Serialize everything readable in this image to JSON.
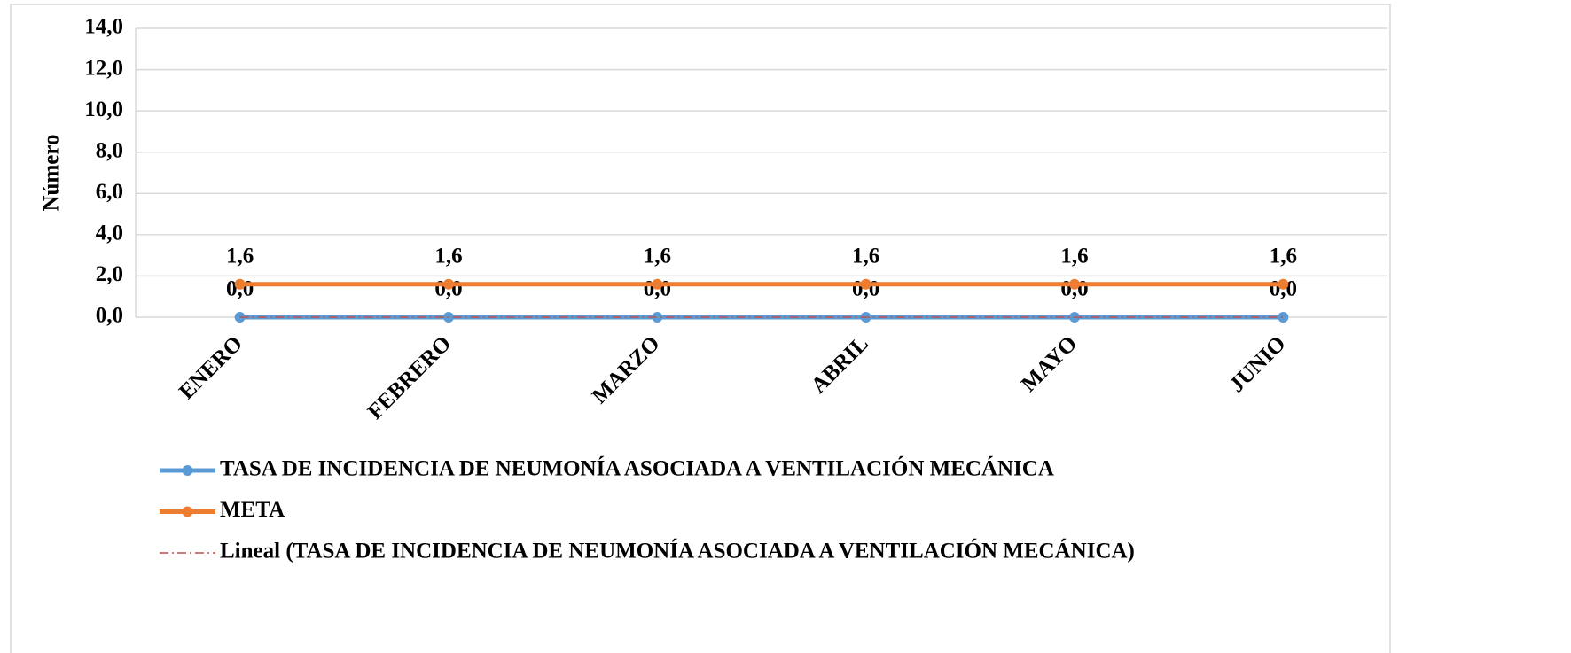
{
  "chart_data": {
    "type": "line",
    "y_axis_label": "Número",
    "categories": [
      "ENERO",
      "FEBRERO",
      "MARZO",
      "ABRIL",
      "MAYO",
      "JUNIO"
    ],
    "series": [
      {
        "name": "TASA DE INCIDENCIA DE NEUMONÍA ASOCIADA A VENTILACIÓN MECÁNICA",
        "color": "#5b9bd5",
        "marker": true,
        "style": "solid",
        "values": [
          0,
          0,
          0,
          0,
          0,
          0
        ],
        "value_labels": [
          "0,0",
          "0,0",
          "0,0",
          "0,0",
          "0,0",
          "0,0"
        ]
      },
      {
        "name": "META",
        "color": "#ed7d31",
        "marker": true,
        "style": "solid",
        "values": [
          1.6,
          1.6,
          1.6,
          1.6,
          1.6,
          1.6
        ],
        "value_labels": [
          "1,6",
          "1,6",
          "1,6",
          "1,6",
          "1,6",
          "1,6"
        ]
      },
      {
        "name": "Lineal (TASA DE INCIDENCIA DE NEUMONÍA ASOCIADA A VENTILACIÓN MECÁNICA)",
        "color": "#c0504d",
        "marker": false,
        "style": "dash-dot",
        "values": [
          0,
          0,
          0,
          0,
          0,
          0
        ]
      }
    ],
    "ylim": [
      0,
      14
    ],
    "yticks": [
      {
        "value": 0,
        "label": "0,0"
      },
      {
        "value": 2,
        "label": "2,0"
      },
      {
        "value": 4,
        "label": "4,0"
      },
      {
        "value": 6,
        "label": "6,0"
      },
      {
        "value": 8,
        "label": "8,0"
      },
      {
        "value": 10,
        "label": "10,0"
      },
      {
        "value": 12,
        "label": "12,0"
      },
      {
        "value": 14,
        "label": "14,0"
      }
    ],
    "grid": true,
    "legend": "bottom"
  }
}
